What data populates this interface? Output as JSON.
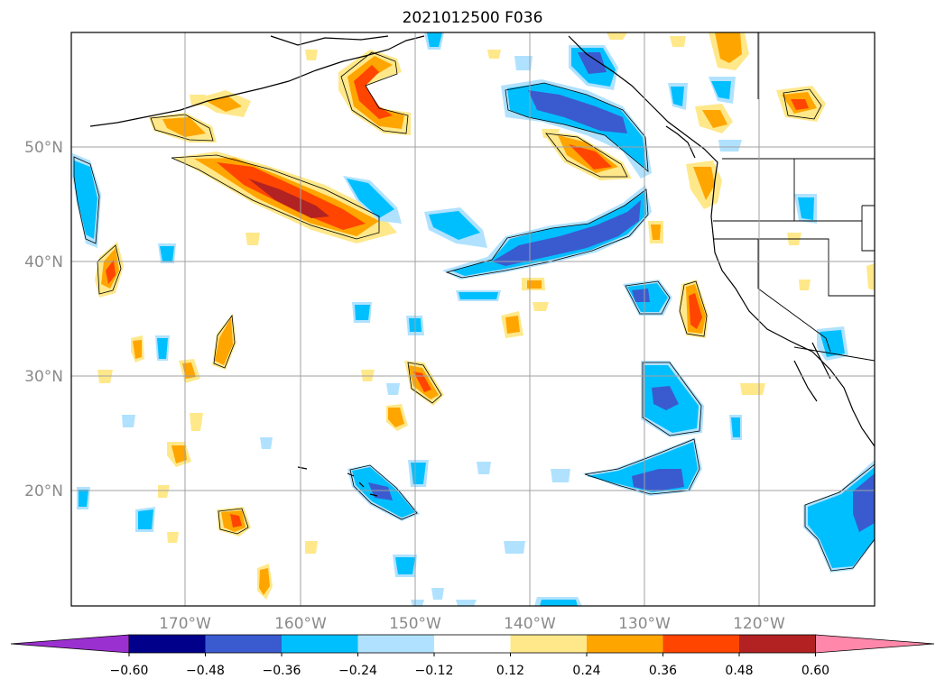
{
  "title": "2021012500 F036",
  "map": {
    "lon_range": [
      -180,
      -110
    ],
    "lat_range": [
      10,
      60
    ],
    "graticule": {
      "lon_labels": [
        "170°W",
        "160°W",
        "150°W",
        "140°W",
        "130°W",
        "120°W"
      ],
      "lat_labels": [
        "20°N",
        "30°N",
        "40°N",
        "50°N"
      ]
    }
  },
  "colorbar": {
    "tick_labels": [
      "−0.60",
      "−0.48",
      "−0.36",
      "−0.24",
      "−0.12",
      "0.12",
      "0.24",
      "0.36",
      "0.48",
      "0.60"
    ],
    "colors": [
      "#9b30d0",
      "#00008b",
      "#3a5bd0",
      "#00bfff",
      "#b0e2ff",
      "#ffffff",
      "#ffe88a",
      "#ffa500",
      "#ff4500",
      "#b22222",
      "#ff88aa"
    ]
  },
  "colors": {
    "pos1": "#ffe88a",
    "pos2": "#ffa500",
    "pos3": "#ff4500",
    "pos4": "#b22222",
    "neg1": "#b0e2ff",
    "neg2": "#00bfff",
    "neg3": "#3a5bd0",
    "neg4": "#00008b"
  }
}
